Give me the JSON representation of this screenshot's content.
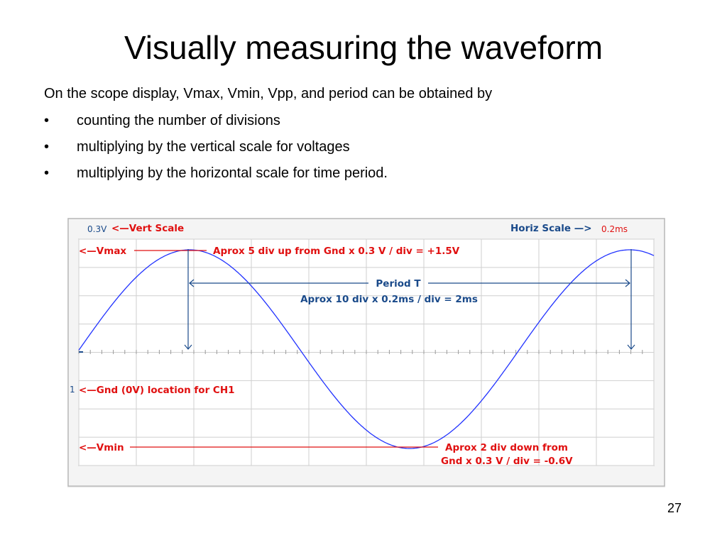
{
  "slide": {
    "title": "Visually measuring the waveform",
    "intro": "On the scope display, Vmax, Vmin, Vpp, and period can be obtained by",
    "bullets": [
      "counting the number of divisions",
      "multiplying by the vertical scale for voltages",
      "multiplying by the horizontal scale for time period."
    ],
    "bullet_char": "•",
    "page_number": "27"
  },
  "scope": {
    "vert_scale_value": "0.3V",
    "vert_scale_label": "<—Vert Scale",
    "horiz_scale_label": "Horiz Scale —>",
    "horiz_scale_value": "0.2ms",
    "vmax_label": "<—Vmax",
    "vmax_note": "Aprox 5 div up from Gnd x 0.3 V / div = +1.5V",
    "period_label": "Period T",
    "period_note": "Aprox 10 div x 0.2ms / div = 2ms",
    "gnd_label": "<—Gnd (0V) location for CH1",
    "channel_marker": "1",
    "vmin_label": "<—Vmin",
    "vmin_note_line1": "Aprox 2 div down from",
    "vmin_note_line2": "Gnd x 0.3 V / div = -0.6V",
    "colors": {
      "grid": "#cfcfcf",
      "trace": "#2233ff",
      "annotation_red": "#e01010",
      "annotation_blue": "#1a4a8a",
      "frame": "#b9b9b9"
    }
  }
}
